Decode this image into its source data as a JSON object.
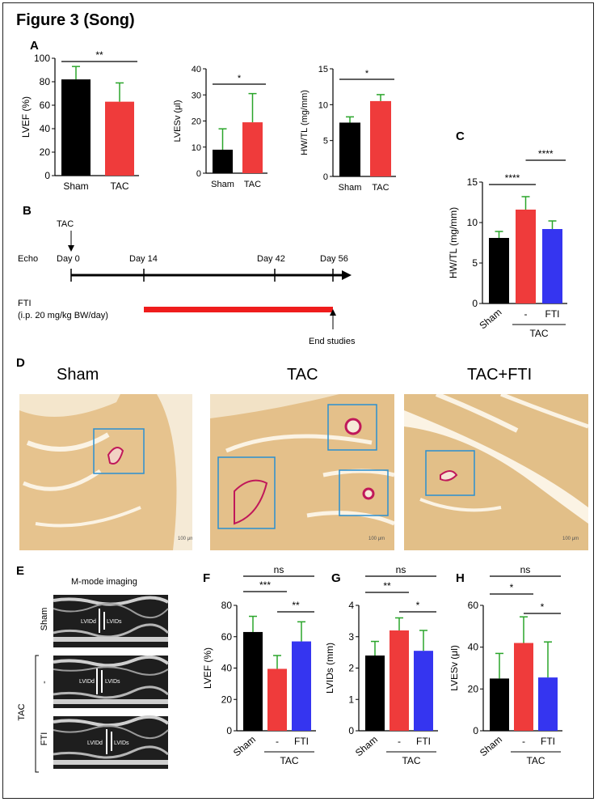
{
  "figure": {
    "title": "Figure 3 (Song)"
  },
  "colors": {
    "black": "#000000",
    "red": "#ef3b3b",
    "blue": "#3535f0",
    "errbar": "#2aa52a",
    "scar": "#c0185a",
    "box": "#2b8fd0"
  },
  "panels": {
    "A": "A",
    "B": "B",
    "C": "C",
    "D": "D",
    "E": "E",
    "F": "F",
    "G": "G",
    "H": "H"
  },
  "chart_data": [
    {
      "id": "A1",
      "type": "bar",
      "categories": [
        "Sham",
        "TAC"
      ],
      "values": [
        82,
        63
      ],
      "errors": [
        11,
        16
      ],
      "ylabel": "LVEF (%)",
      "ylim": [
        0,
        100
      ],
      "yticks": [
        "0",
        "20",
        "40",
        "60",
        "80",
        "100"
      ],
      "sig": [
        {
          "text": "**"
        }
      ]
    },
    {
      "id": "A2",
      "type": "bar",
      "categories": [
        "Sham",
        "TAC"
      ],
      "values": [
        9,
        19.5
      ],
      "errors": [
        8,
        11
      ],
      "ylabel": "LVESv (μl)",
      "ylim": [
        0,
        40
      ],
      "yticks": [
        "0",
        "10",
        "20",
        "30",
        "40"
      ],
      "sig": [
        {
          "text": "*"
        }
      ]
    },
    {
      "id": "A3",
      "type": "bar",
      "categories": [
        "Sham",
        "TAC"
      ],
      "values": [
        7.5,
        10.5
      ],
      "errors": [
        0.8,
        0.9
      ],
      "ylabel": "HW/TL (mg/mm)",
      "ylim": [
        0,
        15
      ],
      "yticks": [
        "0",
        "5",
        "10",
        "15"
      ],
      "sig": [
        {
          "text": "*"
        }
      ]
    },
    {
      "id": "C",
      "type": "bar",
      "categories": [
        "Sham",
        "-",
        "FTI"
      ],
      "values": [
        8.1,
        11.6,
        9.2
      ],
      "errors": [
        0.8,
        1.6,
        1.0
      ],
      "ylabel": "HW/TL (mg/mm)",
      "ylim": [
        0,
        15
      ],
      "yticks": [
        "0",
        "5",
        "10",
        "15"
      ],
      "group_label": "TAC",
      "sig": [
        {
          "text": "****"
        },
        {
          "text": "****"
        }
      ]
    },
    {
      "id": "F",
      "type": "bar",
      "categories": [
        "Sham",
        "-",
        "FTI"
      ],
      "values": [
        63,
        39.5,
        57
      ],
      "errors": [
        10,
        8.5,
        12.5
      ],
      "ylabel": "LVEF (%)",
      "ylim": [
        0,
        80
      ],
      "yticks": [
        "0",
        "20",
        "40",
        "60",
        "80"
      ],
      "group_label": "TAC",
      "sig": [
        {
          "text": "ns"
        },
        {
          "text": "***"
        },
        {
          "text": "**"
        }
      ]
    },
    {
      "id": "G",
      "type": "bar",
      "categories": [
        "Sham",
        "-",
        "FTI"
      ],
      "values": [
        2.4,
        3.2,
        2.55
      ],
      "errors": [
        0.45,
        0.4,
        0.65
      ],
      "ylabel": "LVIDs (mm)",
      "ylim": [
        0,
        4
      ],
      "yticks": [
        "0",
        "1",
        "2",
        "3",
        "4"
      ],
      "group_label": "TAC",
      "sig": [
        {
          "text": "ns"
        },
        {
          "text": "**"
        },
        {
          "text": "*"
        }
      ]
    },
    {
      "id": "H",
      "type": "bar",
      "categories": [
        "Sham",
        "-",
        "FTI"
      ],
      "values": [
        25,
        42,
        25.5
      ],
      "errors": [
        12,
        12.5,
        17
      ],
      "ylabel": "LVESv (μl)",
      "ylim": [
        0,
        60
      ],
      "yticks": [
        "0",
        "20",
        "40",
        "60"
      ],
      "group_label": "TAC",
      "sig": [
        {
          "text": "ns"
        },
        {
          "text": "*"
        },
        {
          "text": "*"
        }
      ]
    }
  ],
  "timeline": {
    "tac_label": "TAC",
    "echo_label": "Echo",
    "days": [
      "Day 0",
      "Day 14",
      "Day 42",
      "Day 56"
    ],
    "fti_label": "FTI",
    "fti_dose": "(i.p. 20 mg/kg BW/day)",
    "end_label": "End studies"
  },
  "histology": {
    "titles": [
      "Sham",
      "TAC",
      "TAC+FTI"
    ],
    "scale": "100 μm"
  },
  "mmode": {
    "title": "M-mode imaging",
    "rows": [
      "Sham",
      "-",
      "FTI"
    ],
    "group": "TAC",
    "lvid_d": "LVIDd",
    "lvid_s": "LVIDs"
  }
}
